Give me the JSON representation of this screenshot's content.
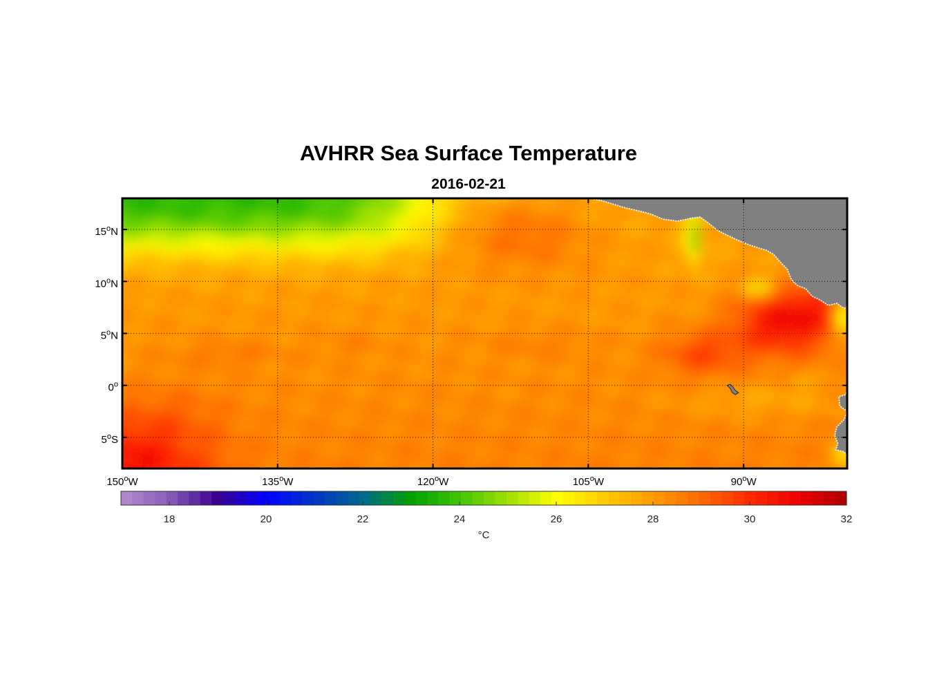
{
  "title": "AVHRR Sea Surface Temperature",
  "subtitle": "2016-02-21",
  "chart_data": {
    "type": "heatmap",
    "title": "AVHRR Sea Surface Temperature",
    "subtitle": "2016-02-21",
    "lon_range": [
      -150,
      -80
    ],
    "lat_range": [
      -8,
      18
    ],
    "grid": true,
    "lat_ticks": [
      {
        "value": 15,
        "label": "15",
        "suffix": "N"
      },
      {
        "value": 10,
        "label": "10",
        "suffix": "N"
      },
      {
        "value": 5,
        "label": "5",
        "suffix": "N"
      },
      {
        "value": 0,
        "label": "0",
        "suffix": ""
      },
      {
        "value": -5,
        "label": "5",
        "suffix": "S"
      }
    ],
    "lon_ticks": [
      {
        "value": -150,
        "label": "150",
        "suffix": "W"
      },
      {
        "value": -135,
        "label": "135",
        "suffix": "W"
      },
      {
        "value": -120,
        "label": "120",
        "suffix": "W"
      },
      {
        "value": -105,
        "label": "105",
        "suffix": "W"
      },
      {
        "value": -90,
        "label": "90",
        "suffix": "W"
      }
    ],
    "colorbar": {
      "range": [
        17,
        32
      ],
      "ticks": [
        18,
        20,
        22,
        24,
        26,
        28,
        30,
        32
      ],
      "label": "°C",
      "colormap": [
        [
          17,
          "#b48ccc"
        ],
        [
          18,
          "#8a5cb8"
        ],
        [
          19,
          "#3a0090"
        ],
        [
          20,
          "#0000ff"
        ],
        [
          22,
          "#006a8a"
        ],
        [
          23,
          "#00a000"
        ],
        [
          24,
          "#40c400"
        ],
        [
          25,
          "#a0e000"
        ],
        [
          26,
          "#ffff00"
        ],
        [
          27,
          "#ffcc00"
        ],
        [
          28,
          "#ff9a00"
        ],
        [
          29,
          "#ff6a00"
        ],
        [
          30,
          "#ff2a00"
        ],
        [
          31,
          "#ee0000"
        ],
        [
          32,
          "#aa0000"
        ]
      ]
    },
    "land_color": "#808080"
  }
}
